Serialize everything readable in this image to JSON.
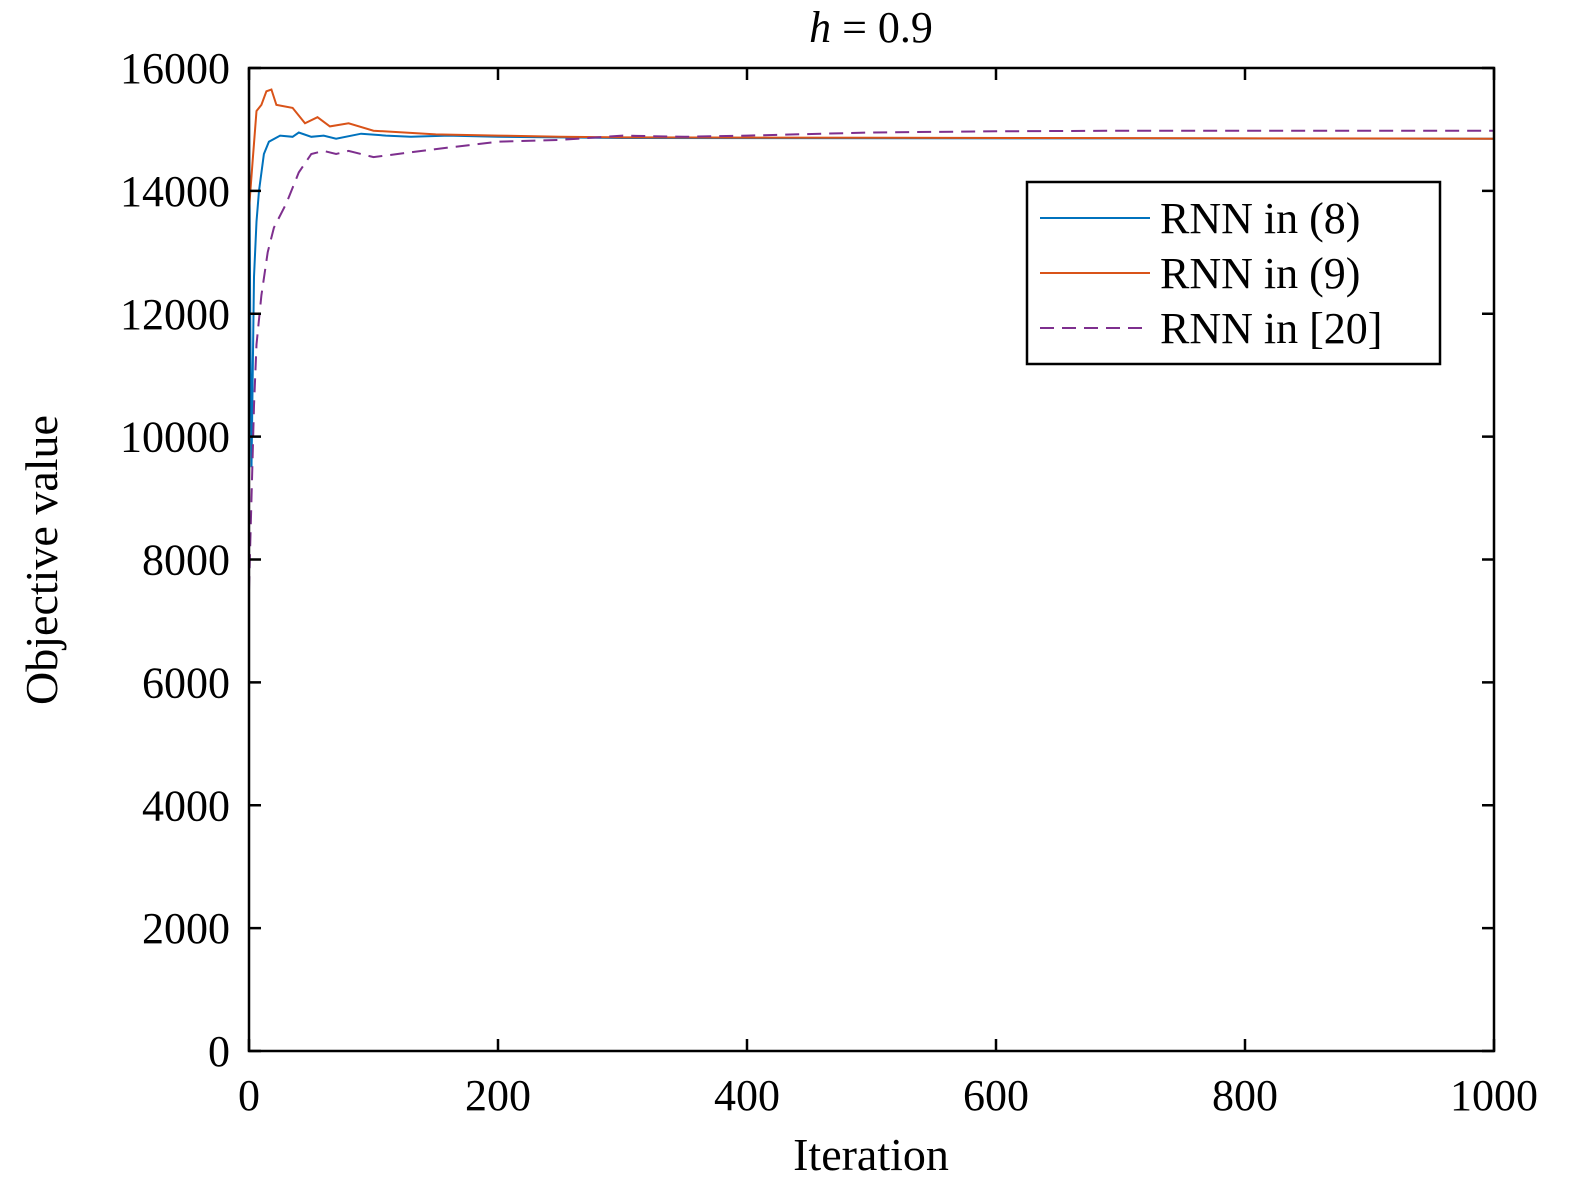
{
  "chart_data": {
    "type": "line",
    "title_var": "h",
    "title_rest": " = 0.9",
    "xlabel": "Iteration",
    "ylabel": "Objective value",
    "xlim": [
      0,
      1000
    ],
    "ylim": [
      0,
      16000
    ],
    "xticks": [
      0,
      200,
      400,
      600,
      800,
      1000
    ],
    "yticks": [
      0,
      2000,
      4000,
      6000,
      8000,
      10000,
      12000,
      14000,
      16000
    ],
    "grid": false,
    "legend_position": "top-right",
    "series": [
      {
        "name": "RNN in (8)",
        "color": "#0072BD",
        "style": "solid",
        "points": [
          [
            0,
            15600
          ],
          [
            1,
            12000
          ],
          [
            2,
            9500
          ],
          [
            4,
            12600
          ],
          [
            6,
            13500
          ],
          [
            8,
            14000
          ],
          [
            12,
            14600
          ],
          [
            16,
            14800
          ],
          [
            25,
            14900
          ],
          [
            35,
            14880
          ],
          [
            40,
            14950
          ],
          [
            50,
            14880
          ],
          [
            60,
            14900
          ],
          [
            70,
            14850
          ],
          [
            90,
            14930
          ],
          [
            110,
            14900
          ],
          [
            130,
            14880
          ],
          [
            160,
            14900
          ],
          [
            200,
            14880
          ],
          [
            300,
            14860
          ],
          [
            1000,
            14850
          ],
          [
            1000,
            0
          ]
        ]
      },
      {
        "name": "RNN in (9)",
        "color": "#D95319",
        "style": "solid",
        "points": [
          [
            0,
            13700
          ],
          [
            3,
            14500
          ],
          [
            6,
            15300
          ],
          [
            10,
            15400
          ],
          [
            14,
            15620
          ],
          [
            18,
            15650
          ],
          [
            22,
            15400
          ],
          [
            35,
            15350
          ],
          [
            45,
            15100
          ],
          [
            55,
            15200
          ],
          [
            65,
            15050
          ],
          [
            80,
            15100
          ],
          [
            100,
            14980
          ],
          [
            150,
            14920
          ],
          [
            200,
            14900
          ],
          [
            250,
            14880
          ],
          [
            300,
            14870
          ],
          [
            1000,
            14850
          ],
          [
            1000,
            0
          ]
        ]
      },
      {
        "name": "RNN in [20]",
        "color": "#7E2F8E",
        "style": "dashed",
        "points": [
          [
            0,
            7500
          ],
          [
            2,
            9000
          ],
          [
            4,
            10500
          ],
          [
            6,
            11500
          ],
          [
            10,
            12300
          ],
          [
            15,
            13000
          ],
          [
            20,
            13400
          ],
          [
            30,
            13800
          ],
          [
            40,
            14300
          ],
          [
            50,
            14600
          ],
          [
            60,
            14650
          ],
          [
            70,
            14600
          ],
          [
            80,
            14650
          ],
          [
            100,
            14550
          ],
          [
            150,
            14680
          ],
          [
            200,
            14800
          ],
          [
            250,
            14830
          ],
          [
            300,
            14900
          ],
          [
            350,
            14880
          ],
          [
            400,
            14900
          ],
          [
            500,
            14950
          ],
          [
            600,
            14970
          ],
          [
            700,
            14980
          ],
          [
            1000,
            14980
          ],
          [
            1000,
            0
          ]
        ]
      }
    ]
  }
}
